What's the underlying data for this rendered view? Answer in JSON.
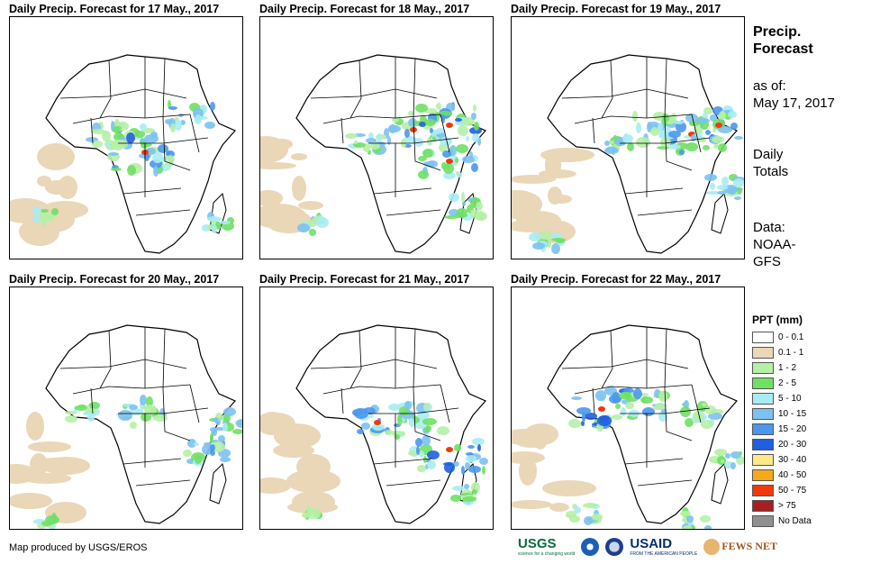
{
  "panels": [
    {
      "title": "Daily Precip. Forecast for 17 May., 2017"
    },
    {
      "title": "Daily Precip. Forecast for 18 May., 2017"
    },
    {
      "title": "Daily Precip. Forecast for 19 May., 2017"
    },
    {
      "title": "Daily Precip. Forecast for 20 May., 2017"
    },
    {
      "title": "Daily Precip. Forecast for 21 May., 2017"
    },
    {
      "title": "Daily Precip. Forecast for 22 May., 2017"
    }
  ],
  "sidebar": {
    "title_line1": "Precip.",
    "title_line2": "Forecast",
    "asof_label": "as of:",
    "asof_date": "May 17, 2017",
    "totals_line1": "Daily",
    "totals_line2": "Totals",
    "data_line1": "Data:",
    "data_line2": "NOAA-",
    "data_line3": "GFS"
  },
  "legend": {
    "title": "PPT (mm)",
    "items": [
      {
        "label": "0 - 0.1",
        "color": "#ffffff"
      },
      {
        "label": "0.1 - 1",
        "color": "#ead7b8"
      },
      {
        "label": "1 - 2",
        "color": "#b5f0a6"
      },
      {
        "label": "2 - 5",
        "color": "#6fe064"
      },
      {
        "label": "5 - 10",
        "color": "#a8ecf3"
      },
      {
        "label": "10 - 15",
        "color": "#7cc1f2"
      },
      {
        "label": "15 - 20",
        "color": "#4a97ec"
      },
      {
        "label": "20 - 30",
        "color": "#1f5fe0"
      },
      {
        "label": "30 - 40",
        "color": "#fde989"
      },
      {
        "label": "40 - 50",
        "color": "#f7a81b"
      },
      {
        "label": "50 - 75",
        "color": "#f03a0c"
      },
      {
        "label": "> 75",
        "color": "#a52020"
      },
      {
        "label": "No Data",
        "color": "#909090"
      }
    ]
  },
  "credit": "Map produced by USGS/EROS",
  "logos": {
    "usgs": "USGS",
    "usgs_tag": "science for a changing world",
    "usaid": "USAID",
    "usaid_tag": "FROM THE AMERICAN PEOPLE",
    "fewsnet": "FEWS NET"
  }
}
